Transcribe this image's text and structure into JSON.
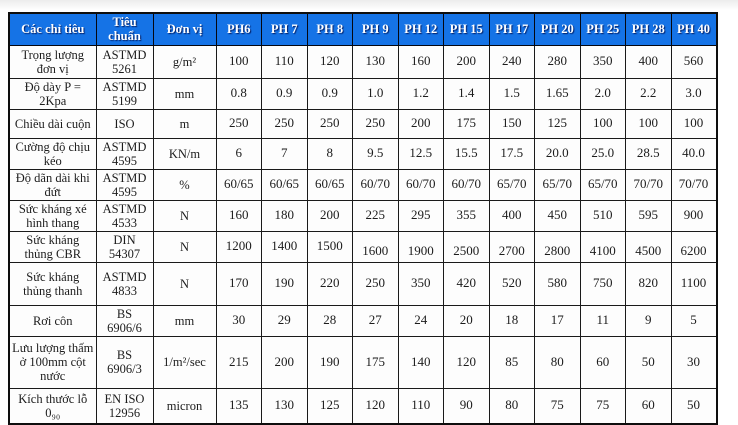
{
  "colors": {
    "header_bg": "#1573E6",
    "header_text": "#FFFFFF",
    "border": "#1A1A1A"
  },
  "table": {
    "columns": [
      "Các chỉ tiêu",
      "Tiêu chuẩn",
      "Đơn vị",
      "PH6",
      "PH 7",
      "PH 8",
      "PH 9",
      "PH 12",
      "PH 15",
      "PH 17",
      "PH 20",
      "PH 25",
      "PH 28",
      "PH 40"
    ],
    "rows": [
      {
        "label": "Trọng lượng đơn vị",
        "standard": "ASTMD 5261",
        "unit": "g/m²",
        "values": [
          "100",
          "110",
          "120",
          "130",
          "160",
          "200",
          "240",
          "280",
          "350",
          "400",
          "560"
        ]
      },
      {
        "label": "Độ dày P = 2Kpa",
        "standard": "ASTMD 5199",
        "unit": "mm",
        "values": [
          "0.8",
          "0.9",
          "0.9",
          "1.0",
          "1.2",
          "1.4",
          "1.5",
          "1.65",
          "2.0",
          "2.2",
          "3.0"
        ]
      },
      {
        "label": "Chiều dài cuộn",
        "standard": "ISO",
        "unit": "m",
        "values": [
          "250",
          "250",
          "250",
          "250",
          "200",
          "175",
          "150",
          "125",
          "100",
          "100",
          "100"
        ]
      },
      {
        "label": "Cường độ chịu kéo",
        "standard": "ASTMD 4595",
        "unit": "KN/m",
        "values": [
          "6",
          "7",
          "8",
          "9.5",
          "12.5",
          "15.5",
          "17.5",
          "20.0",
          "25.0",
          "28.5",
          "40.0"
        ]
      },
      {
        "label": "Độ dãn dài khi đứt",
        "standard": "ASTMD 4595",
        "unit": "%",
        "values": [
          "60/65",
          "60/65",
          "60/65",
          "60/70",
          "60/70",
          "60/70",
          "65/70",
          "65/70",
          "65/70",
          "70/70",
          "70/70"
        ]
      },
      {
        "label": "Sức kháng xé hình thang",
        "standard": "ASTMD 4533",
        "unit": "N",
        "values": [
          "160",
          "180",
          "200",
          "225",
          "295",
          "355",
          "400",
          "450",
          "510",
          "595",
          "900"
        ]
      },
      {
        "label": "Sức kháng thủng CBR",
        "standard": "DIN 54307",
        "unit": "N",
        "values": [
          "1200",
          "1400",
          "1500",
          "1600",
          "1900",
          "2500",
          "2700",
          "2800",
          "4100",
          "4500",
          "6200"
        ],
        "value_offset_from": 3
      },
      {
        "label": "Sức kháng thủng thanh",
        "standard": "ASTMD 4833",
        "unit": "N",
        "values": [
          "170",
          "190",
          "220",
          "250",
          "350",
          "420",
          "520",
          "580",
          "750",
          "820",
          "1100"
        ]
      },
      {
        "label": "Rơi côn",
        "standard": "BS 6906/6",
        "unit": "mm",
        "values": [
          "30",
          "29",
          "28",
          "27",
          "24",
          "20",
          "18",
          "17",
          "11",
          "9",
          "5"
        ]
      },
      {
        "label": "Lưu lượng thấm ở 100mm cột nước",
        "standard": "BS 6906/3",
        "unit": "1/m²/sec",
        "values": [
          "215",
          "200",
          "190",
          "175",
          "140",
          "120",
          "85",
          "80",
          "60",
          "50",
          "30"
        ]
      },
      {
        "label": "Kích thước lỗ 0₉₀",
        "standard": "EN ISO 12956",
        "unit": "micron",
        "values": [
          "135",
          "130",
          "125",
          "120",
          "110",
          "90",
          "80",
          "75",
          "75",
          "60",
          "50"
        ]
      }
    ]
  }
}
